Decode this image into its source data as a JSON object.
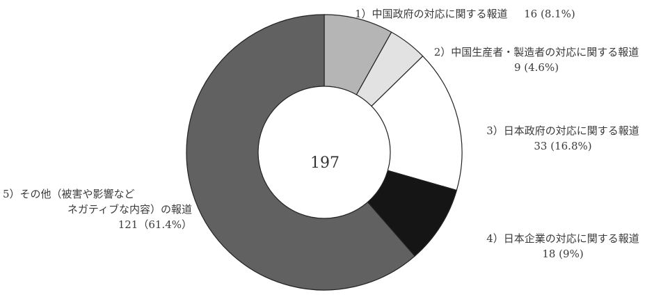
{
  "chart_data": {
    "type": "pie",
    "donut": true,
    "total": 197,
    "slices": [
      {
        "line1": "1）中国政府の対応に関する報道",
        "line2": "16 (8.1%)",
        "value": 16,
        "percent": 8.1,
        "color": "#b5b5b5"
      },
      {
        "line1": "2）中国生産者・製造者の対応に関する報道",
        "line2": "9 (4.6%)",
        "value": 9,
        "percent": 4.6,
        "color": "#e2e2e2"
      },
      {
        "line1": "3）日本政府の対応に関する報道",
        "line2": "33 (16.8%)",
        "value": 33,
        "percent": 16.8,
        "color": "#ffffff"
      },
      {
        "line1": "4）日本企業の対応に関する報道",
        "line2": "18 (9%)",
        "value": 18,
        "percent": 9.0,
        "color": "#151515"
      },
      {
        "line1": "5）その他（被害や影響など",
        "line1b": "ネガティブな内容）の報道",
        "line2": "121（61.4%）",
        "value": 121,
        "percent": 61.4,
        "color": "#616161"
      }
    ]
  }
}
